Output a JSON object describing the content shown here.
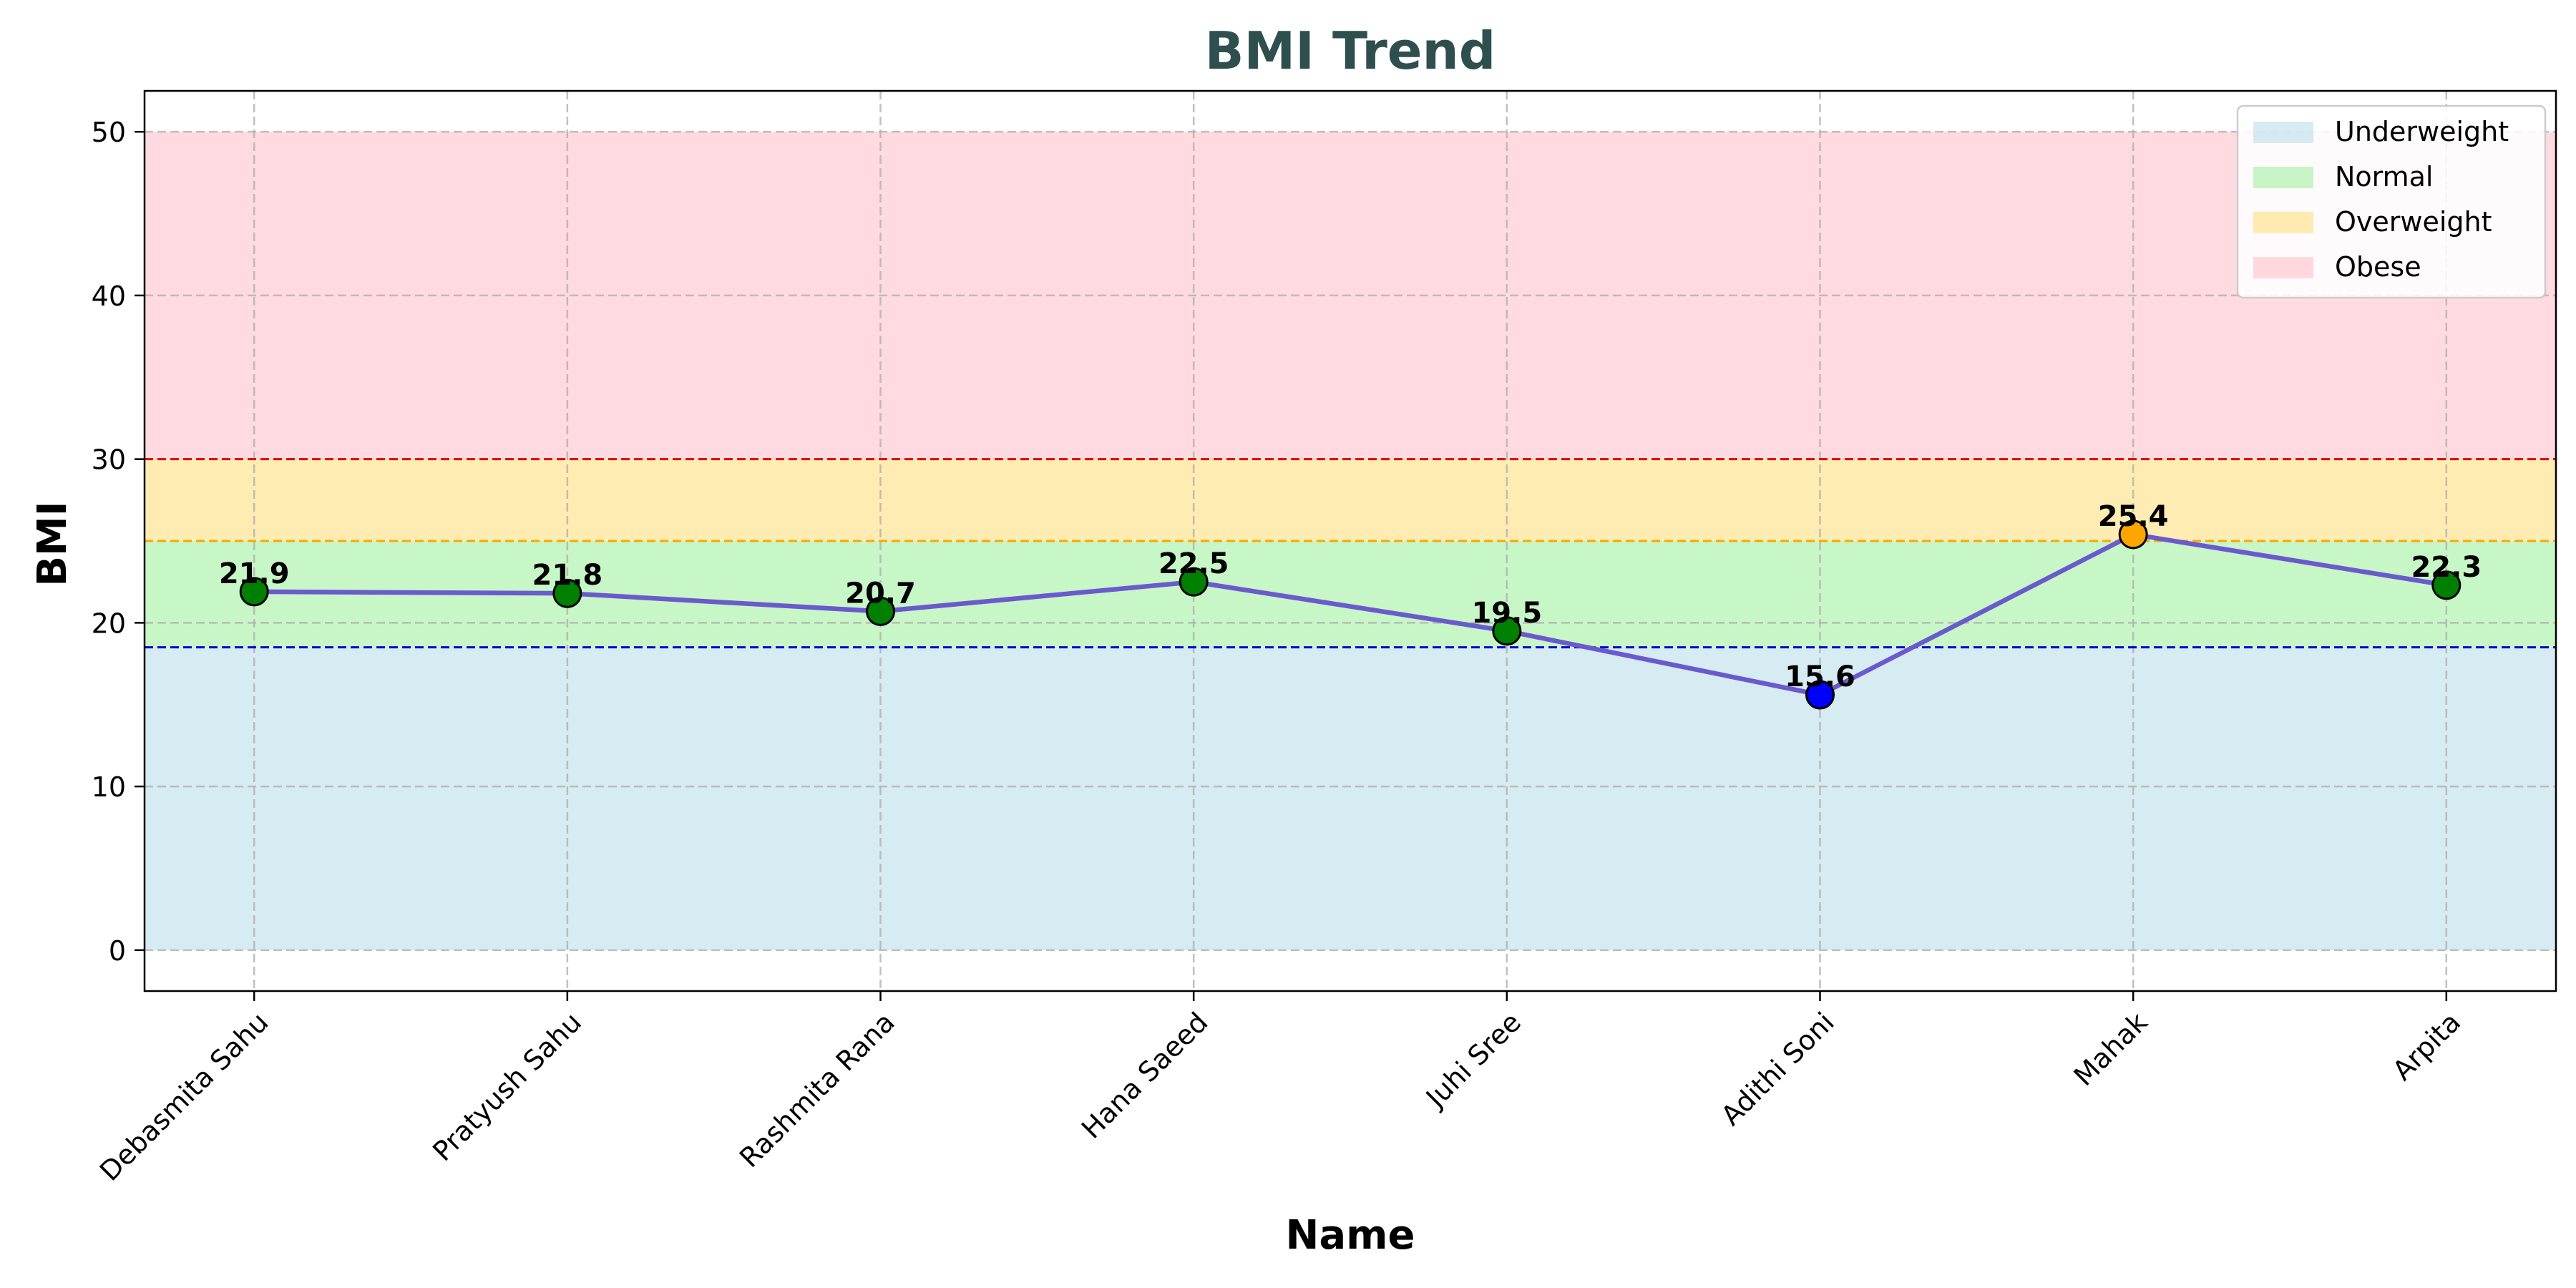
{
  "chart_data": {
    "type": "line",
    "title": "BMI Trend",
    "xlabel": "Name",
    "ylabel": "BMI",
    "categories": [
      "Debasmita Sahu",
      "Pratyush Sahu",
      "Rashmita Rana",
      "Hana Saeed",
      "Juhi Sree",
      "Adithi Soni",
      "Mahak",
      "Arpita"
    ],
    "series": [
      {
        "values": [
          21.9,
          21.8,
          20.7,
          22.5,
          19.5,
          15.6,
          25.4,
          22.3
        ],
        "point_labels": [
          "21.9",
          "21.8",
          "20.7",
          "22.5",
          "19.5",
          "15.6",
          "25.4",
          "22.3"
        ],
        "line_color": "#6a5acd",
        "point_colors": [
          "#008000",
          "#008000",
          "#008000",
          "#008000",
          "#008000",
          "#0000ff",
          "#ffa500",
          "#008000"
        ]
      }
    ],
    "ylim": [
      -2.5,
      52.5
    ],
    "yticks": [
      0,
      10,
      20,
      30,
      40,
      50
    ],
    "ytick_labels": [
      "0",
      "10",
      "20",
      "30",
      "40",
      "50"
    ],
    "grid": true,
    "legend_position": "top-right",
    "bands": [
      {
        "name": "Underweight",
        "from": 0,
        "to": 18.5,
        "color": "#add8e6"
      },
      {
        "name": "Normal",
        "from": 18.5,
        "to": 25,
        "color": "#90ee90"
      },
      {
        "name": "Overweight",
        "from": 25,
        "to": 30,
        "color": "#ffd966"
      },
      {
        "name": "Obese",
        "from": 30,
        "to": 50,
        "color": "#ffb6c1"
      }
    ],
    "threshold_lines": [
      {
        "value": 18.5,
        "color": "#0000cd"
      },
      {
        "value": 25,
        "color": "#ffa500"
      },
      {
        "value": 30,
        "color": "#e00000"
      }
    ],
    "title_color": "#2f4f4f"
  }
}
